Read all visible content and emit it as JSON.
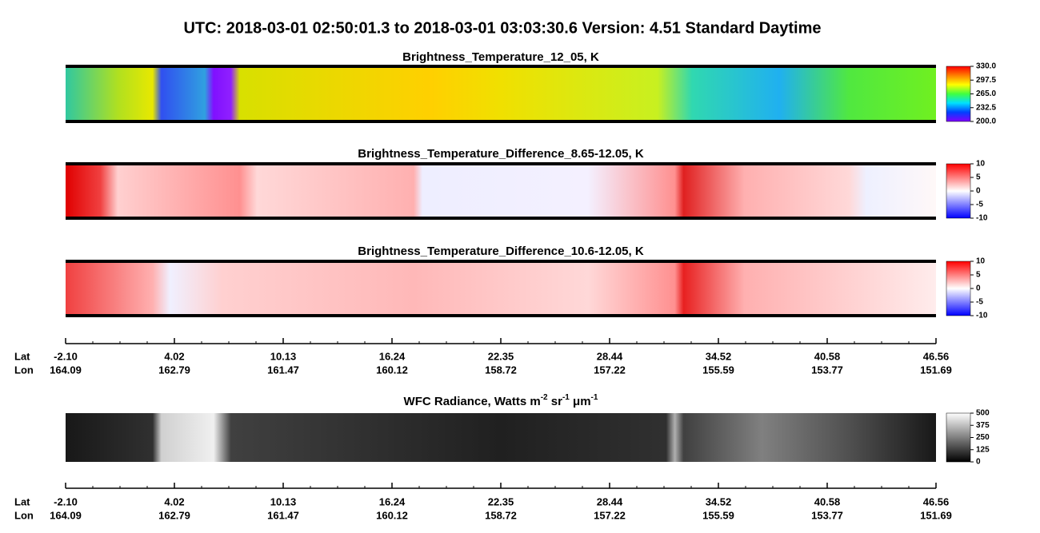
{
  "title": "UTC:  2018-03-01   02:50:01.3  to  2018-03-01   03:03:30.6    Version: 4.51  Standard Daytime",
  "panels": [
    {
      "title": "Brightness_Temperature_12_05, K",
      "range": [
        200,
        330
      ],
      "colors": [
        "#8000ff",
        "#0040ff",
        "#00e0ff",
        "#40ff40",
        "#ffff00",
        "#ff8000",
        "#ff0000"
      ],
      "ticks": [
        {
          "value": 330,
          "label": "330.0"
        },
        {
          "value": 297.5,
          "label": "297.5"
        },
        {
          "value": 265,
          "label": "265.0"
        },
        {
          "value": 232.5,
          "label": "232.5"
        },
        {
          "value": 200,
          "label": "200.0"
        }
      ]
    },
    {
      "title": "Brightness_Temperature_Difference_8.65-12.05, K",
      "range": [
        -10,
        10
      ],
      "colors": [
        "#0000ff",
        "#ffffff",
        "#ff0000"
      ],
      "ticks": [
        10,
        5,
        0,
        -5,
        -10
      ]
    },
    {
      "title": "Brightness_Temperature_Difference_10.6-12.05, K",
      "range": [
        -10,
        10
      ],
      "colors": [
        "#0000ff",
        "#ffffff",
        "#ff0000"
      ],
      "ticks": [
        10,
        5,
        0,
        -5,
        -10
      ]
    },
    {
      "title_parts": [
        {
          "text": "WFC Radiance, Watts m"
        },
        {
          "text": "-2",
          "sup": true
        },
        {
          "text": " sr"
        },
        {
          "text": "-1",
          "sup": true
        },
        {
          "text": " μm"
        },
        {
          "text": "-1",
          "sup": true
        }
      ],
      "range": [
        0,
        500
      ],
      "colors": [
        "#000000",
        "#ffffff"
      ],
      "ticks": [
        500,
        375,
        250,
        125,
        0
      ]
    }
  ],
  "axis": {
    "lat_label": "Lat",
    "lon_label": "Lon",
    "lat": [
      {
        "value": -2.1,
        "label": "-2.10"
      },
      4.02,
      10.13,
      16.24,
      22.35,
      28.44,
      34.52,
      40.58,
      46.56
    ],
    "lon": [
      164.09,
      162.79,
      161.47,
      160.12,
      158.72,
      157.22,
      155.59,
      153.77,
      151.69
    ]
  }
}
